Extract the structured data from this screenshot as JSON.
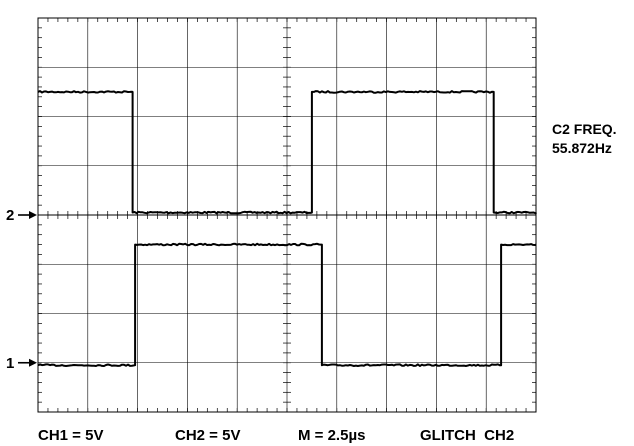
{
  "chart_data": {
    "type": "line",
    "title": "",
    "xlabel": "",
    "ylabel": "",
    "grid": true,
    "x_divisions": 10,
    "y_divisions": 8,
    "xlim": [
      0,
      10
    ],
    "ylim": [
      -4,
      4
    ],
    "series": [
      {
        "channel": "2",
        "reference_level": 0,
        "points": [
          [
            0,
            2.5
          ],
          [
            1.9,
            2.5
          ],
          [
            1.9,
            0.05
          ],
          [
            5.5,
            0.05
          ],
          [
            5.5,
            2.5
          ],
          [
            9.15,
            2.5
          ],
          [
            9.15,
            0.05
          ],
          [
            10,
            0.05
          ]
        ],
        "color": "#000000"
      },
      {
        "channel": "1",
        "reference_level": -3,
        "points": [
          [
            0,
            -3.05
          ],
          [
            1.95,
            -3.05
          ],
          [
            1.95,
            -0.6
          ],
          [
            5.7,
            -0.6
          ],
          [
            5.7,
            -3.05
          ],
          [
            9.3,
            -3.05
          ],
          [
            9.3,
            -0.6
          ],
          [
            10,
            -0.6
          ]
        ],
        "color": "#000000"
      }
    ]
  },
  "channel_markers": [
    {
      "label": "2",
      "level": 0
    },
    {
      "label": "1",
      "level": -3
    }
  ],
  "side_readout": {
    "line1": "C2 FREQ.",
    "line2": "55.872Hz"
  },
  "bottom_readout": {
    "ch1": "CH1 = 5V",
    "ch2": "CH2 = 5V",
    "time": "M = 2.5µs",
    "trigger": "GLITCH  CH2"
  }
}
